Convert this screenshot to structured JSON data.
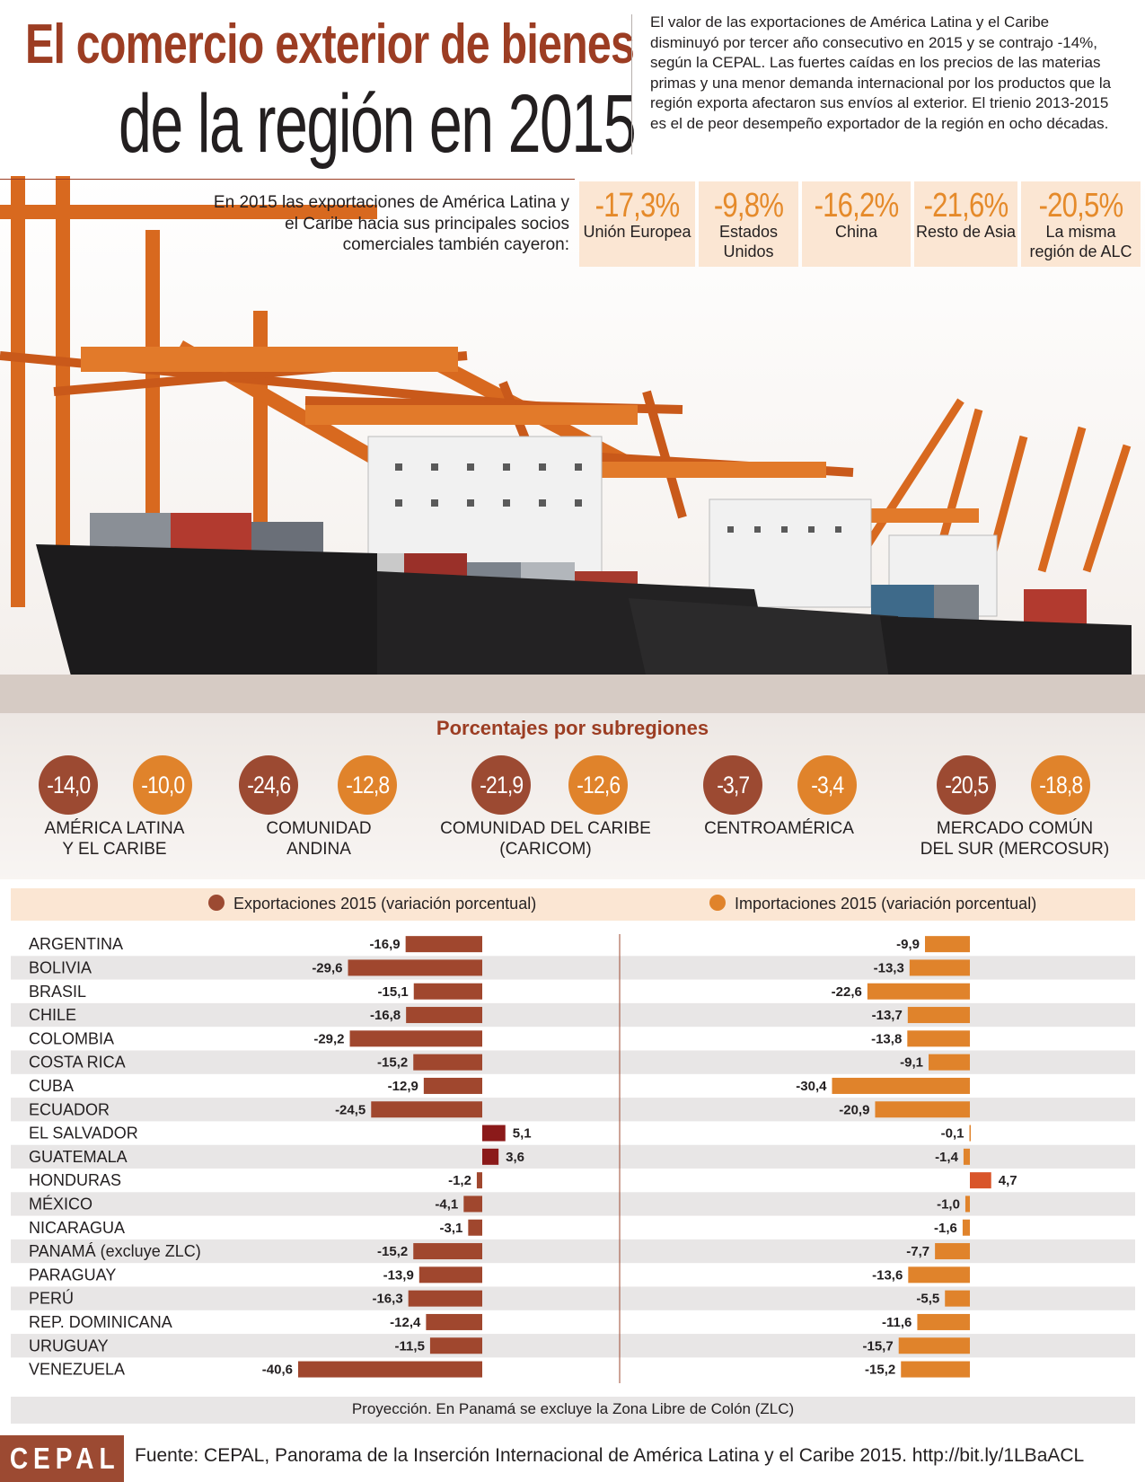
{
  "header": {
    "title_line1": "El comercio exterior de bienes",
    "title_line2": "de la región en 2015",
    "intro": "El valor de las exportaciones de América Latina y el Caribe disminuyó por tercer año consecutivo en 2015 y se contrajo -14%, según la CEPAL.  Las fuertes caídas en los precios de las materias primas y una menor demanda internacional por los productos que la región exporta afectaron sus envíos al exterior. El trienio 2013-2015 es el de peor desempeño exportador de la región en ocho décadas."
  },
  "partners": {
    "intro": "En 2015 las exportaciones de América Latina y el Caribe hacia sus principales socios comerciales también cayeron:",
    "items": [
      {
        "value": "-17,3%",
        "label": "Unión Europea"
      },
      {
        "value": "-9,8%",
        "label": "Estados Unidos"
      },
      {
        "value": "-16,2%",
        "label": "China"
      },
      {
        "value": "-21,6%",
        "label": "Resto de Asia"
      },
      {
        "value": "-20,5%",
        "label": "La misma región de ALC"
      }
    ]
  },
  "subregions": {
    "title": "Porcentajes por subregiones",
    "items": [
      {
        "export": "-14,0",
        "import": "-10,0",
        "name_line1": "AMÉRICA LATINA",
        "name_line2": "Y EL CARIBE"
      },
      {
        "export": "-24,6",
        "import": "-12,8",
        "name_line1": "COMUNIDAD",
        "name_line2": "ANDINA"
      },
      {
        "export": "-21,9",
        "import": "-12,6",
        "name_line1": "COMUNIDAD DEL CARIBE",
        "name_line2": "(CARICOM)"
      },
      {
        "export": "-3,7",
        "import": "-3,4",
        "name_line1": "CENTROAMÉRICA",
        "name_line2": ""
      },
      {
        "export": "-20,5",
        "import": "-18,8",
        "name_line1": "MERCADO COMÚN",
        "name_line2": "DEL SUR (MERCOSUR)"
      }
    ]
  },
  "colors": {
    "brand_red": "#9c3d23",
    "export_bar": "#a0472e",
    "export_positive": "#8b1a1a",
    "import_bar": "#e0832b",
    "import_positive": "#d9552a",
    "highlight_bg": "#fbe6d3",
    "row_stripe": "#e8e6e6"
  },
  "chart_data": {
    "type": "bar",
    "categories": [
      "ARGENTINA",
      "BOLIVIA",
      "BRASIL",
      "CHILE",
      "COLOMBIA",
      "COSTA RICA",
      "CUBA",
      "ECUADOR",
      "EL SALVADOR",
      "GUATEMALA",
      "HONDURAS",
      "MÉXICO",
      "NICARAGUA",
      "PANAMÁ (excluye ZLC)",
      "PARAGUAY",
      "PERÚ",
      "REP. DOMINICANA",
      "URUGUAY",
      "VENEZUELA"
    ],
    "series": [
      {
        "name": "Exportaciones 2015 (variación porcentual)",
        "values": [
          -16.9,
          -29.6,
          -15.1,
          -16.8,
          -29.2,
          -15.2,
          -12.9,
          -24.5,
          5.1,
          3.6,
          -1.2,
          -4.1,
          -3.1,
          -15.2,
          -13.9,
          -16.3,
          -12.4,
          -11.5,
          -40.6
        ],
        "labels": [
          "-16,9",
          "-29,6",
          "-15,1",
          "-16,8",
          "-29,2",
          "-15,2",
          "-12,9",
          "-24,5",
          "5,1",
          "3,6",
          "-1,2",
          "-4,1",
          "-3,1",
          "-15,2",
          "-13,9",
          "-16,3",
          "-12,4",
          "-11,5",
          "-40,6"
        ]
      },
      {
        "name": "Importaciones 2015 (variación porcentual)",
        "values": [
          -9.9,
          -13.3,
          -22.6,
          -13.7,
          -13.8,
          -9.1,
          -30.4,
          -20.9,
          -0.1,
          -1.4,
          4.7,
          -1.0,
          -1.6,
          -7.7,
          -13.6,
          -5.5,
          -11.6,
          -15.7,
          -15.2
        ],
        "labels": [
          "-9,9",
          "-13,3",
          "-22,6",
          "-13,7",
          "-13,8",
          "-9,1",
          "-30,4",
          "-20,9",
          "-0,1",
          "-1,4",
          "4,7",
          "-1,0",
          "-1,6",
          "-7,7",
          "-13,6",
          "-5,5",
          "-11,6",
          "-15,7",
          "-15,2"
        ]
      }
    ],
    "orientation": "horizontal"
  },
  "footer": {
    "note": "Proyección. En Panamá se excluye la Zona Libre de Colón (ZLC)",
    "logo": "CEPAL",
    "source": "Fuente: CEPAL, Panorama de la Inserción Internacional de América Latina y el Caribe 2015. http://bit.ly/1LBaACL"
  }
}
